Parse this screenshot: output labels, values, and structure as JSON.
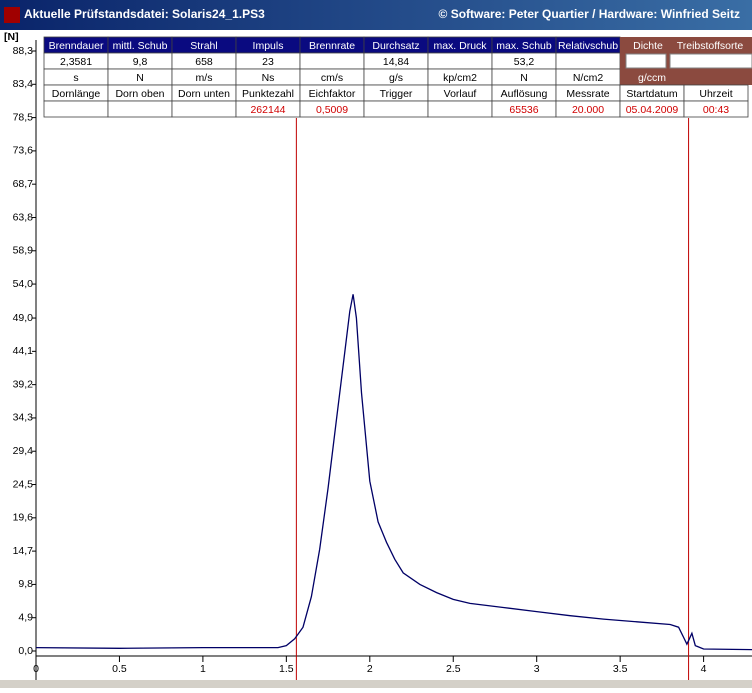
{
  "window": {
    "title": "Aktuelle Prüfstandsdatei: Solaris24_1.PS3",
    "credits": "© Software: Peter Quartier / Hardware: Winfried Seitz"
  },
  "table": {
    "header1": [
      "Brenndauer",
      "mittl. Schub",
      "Strahl",
      "Impuls",
      "Brennrate",
      "Durchsatz",
      "max. Druck",
      "max. Schub",
      "Relativschub"
    ],
    "row1": [
      "2,3581",
      "9,8",
      "658",
      "23",
      null,
      "14,84",
      null,
      "53,2",
      null
    ],
    "units": [
      "s",
      "N",
      "m/s",
      "Ns",
      "cm/s",
      "g/s",
      "kp/cm2",
      "N",
      "N/cm2"
    ],
    "side_header": [
      "Dichte",
      "Treibstoffsorte"
    ],
    "side_unit": "g/ccm",
    "header2": [
      "Dornlänge",
      "Dorn oben",
      "Dorn unten",
      "Punktezahl",
      "Eichfaktor",
      "Trigger",
      "Vorlauf",
      "Auflösung",
      "Messrate",
      "Startdatum",
      "Uhrzeit"
    ],
    "row2": [
      null,
      null,
      null,
      "262144",
      "0,5009",
      null,
      null,
      "65536",
      "20.000",
      "05.04.2009",
      "00:43"
    ]
  },
  "chart_data": {
    "type": "line",
    "y_label": "[N]",
    "xlim": [
      0,
      4.29
    ],
    "ylim": [
      0,
      88.3
    ],
    "xticks": [
      0,
      0.5,
      1,
      1.5,
      2,
      2.5,
      3,
      3.5,
      4
    ],
    "yticks": [
      {
        "value": 0,
        "label": "0,0"
      },
      {
        "value": 4.9,
        "label": "4,9"
      },
      {
        "value": 9.8,
        "label": "9,8"
      },
      {
        "value": 14.7,
        "label": "14,7"
      },
      {
        "value": 19.6,
        "label": "19,6"
      },
      {
        "value": 24.5,
        "label": "24,5"
      },
      {
        "value": 29.4,
        "label": "29,4"
      },
      {
        "value": 34.3,
        "label": "34,3"
      },
      {
        "value": 39.2,
        "label": "39,2"
      },
      {
        "value": 44.1,
        "label": "44,1"
      },
      {
        "value": 49.0,
        "label": "49,0"
      },
      {
        "value": 54.0,
        "label": "54,0"
      },
      {
        "value": 58.9,
        "label": "58,9"
      },
      {
        "value": 63.8,
        "label": "63,8"
      },
      {
        "value": 68.7,
        "label": "68,7"
      },
      {
        "value": 73.6,
        "label": "73,6"
      },
      {
        "value": 78.5,
        "label": "78,5"
      },
      {
        "value": 83.4,
        "label": "83,4"
      },
      {
        "value": 88.3,
        "label": "88,3"
      }
    ],
    "markers": [
      {
        "x": 1.56,
        "color": "#c00000"
      },
      {
        "x": 3.91,
        "color": "#c00000"
      }
    ],
    "series": [
      {
        "color": "#000066",
        "x": [
          0,
          0.5,
          1.0,
          1.45,
          1.5,
          1.55,
          1.6,
          1.65,
          1.7,
          1.75,
          1.8,
          1.85,
          1.88,
          1.9,
          1.92,
          1.95,
          2.0,
          2.05,
          2.1,
          2.15,
          2.2,
          2.3,
          2.4,
          2.5,
          2.6,
          2.8,
          3.0,
          3.2,
          3.4,
          3.6,
          3.8,
          3.85,
          3.88,
          3.9,
          3.93,
          3.95,
          4.0,
          4.29
        ],
        "values": [
          0.5,
          0.4,
          0.5,
          0.5,
          0.8,
          1.8,
          3.5,
          8,
          15,
          24,
          34,
          44,
          50,
          52.5,
          49,
          38,
          25,
          19,
          16,
          13.5,
          11.5,
          9.8,
          8.6,
          7.6,
          7.0,
          6.4,
          5.8,
          5.2,
          4.7,
          4.3,
          3.9,
          3.5,
          2.0,
          1.0,
          2.6,
          0.8,
          0.3,
          0.2
        ]
      }
    ]
  }
}
